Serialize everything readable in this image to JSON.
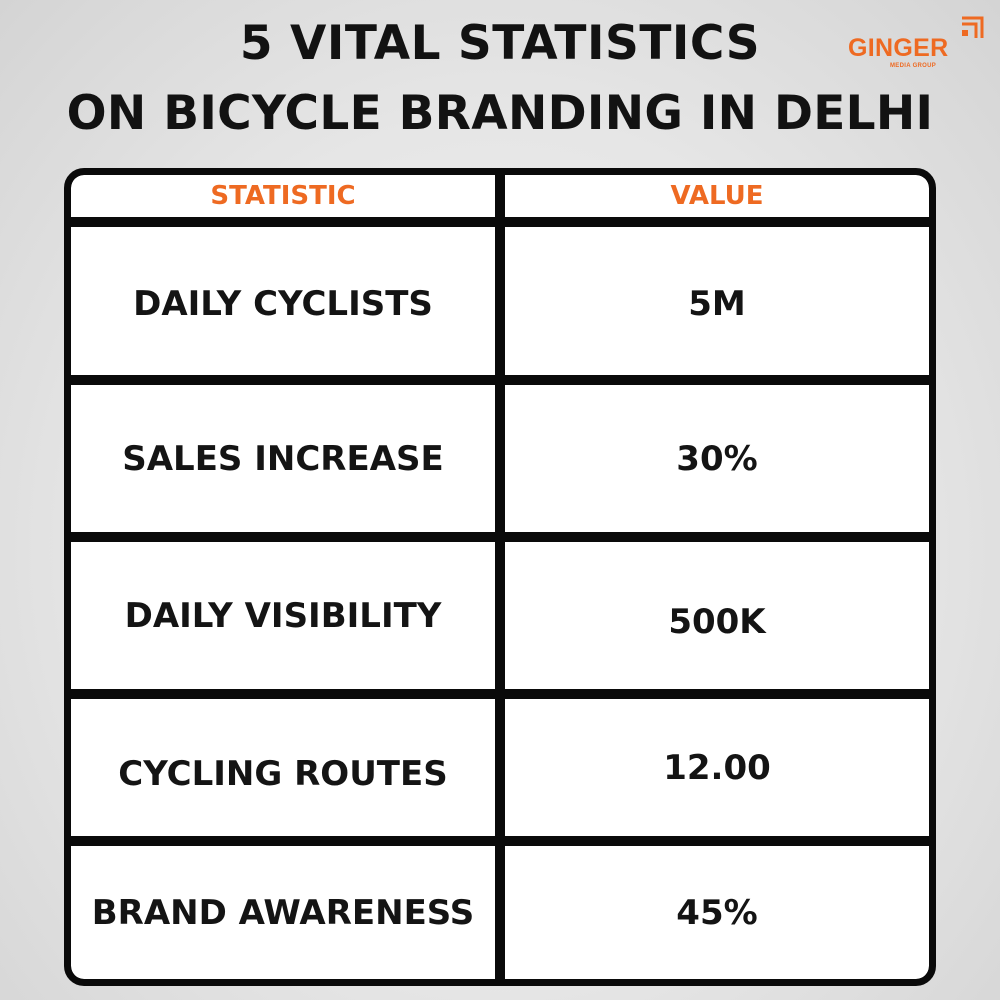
{
  "title_line1": "5 VITAL STATISTICS",
  "title_line2": "ON BICYCLE BRANDING IN DELHI",
  "logo": {
    "name": "GINGER",
    "tagline": "MEDIA GROUP",
    "accent_color": "#ee6a22"
  },
  "table": {
    "columns": [
      "STATISTIC",
      "VALUE"
    ],
    "rows": [
      {
        "statistic": "DAILY CYCLISTS",
        "value": "5M"
      },
      {
        "statistic": "SALES INCREASE",
        "value": "30%"
      },
      {
        "statistic": "DAILY VISIBILITY",
        "value": "500K"
      },
      {
        "statistic": "CYCLING ROUTES",
        "value": "12.00"
      },
      {
        "statistic": "BRAND AWARENESS",
        "value": "45%"
      }
    ]
  }
}
